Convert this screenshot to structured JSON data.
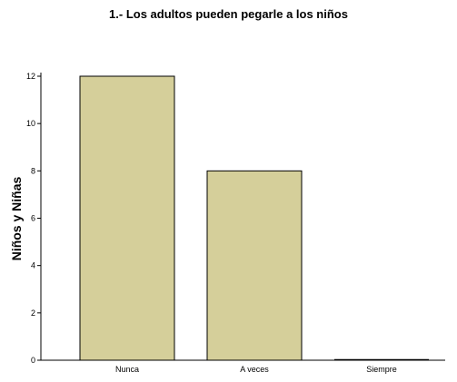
{
  "chart_data": {
    "type": "bar",
    "title": "1.- Los adultos pueden pegarle a los niños",
    "ylabel": "Niños y Niñas",
    "xlabel": "",
    "categories": [
      "Nunca",
      "A veces",
      "Siempre"
    ],
    "values": [
      12,
      8,
      0
    ],
    "ylim": [
      0,
      12
    ],
    "yticks": [
      0,
      2,
      4,
      6,
      8,
      10,
      12
    ],
    "bar_color": "#d5cf9a",
    "bar_edge_color": "#000000",
    "grid": false,
    "legend": "none"
  }
}
